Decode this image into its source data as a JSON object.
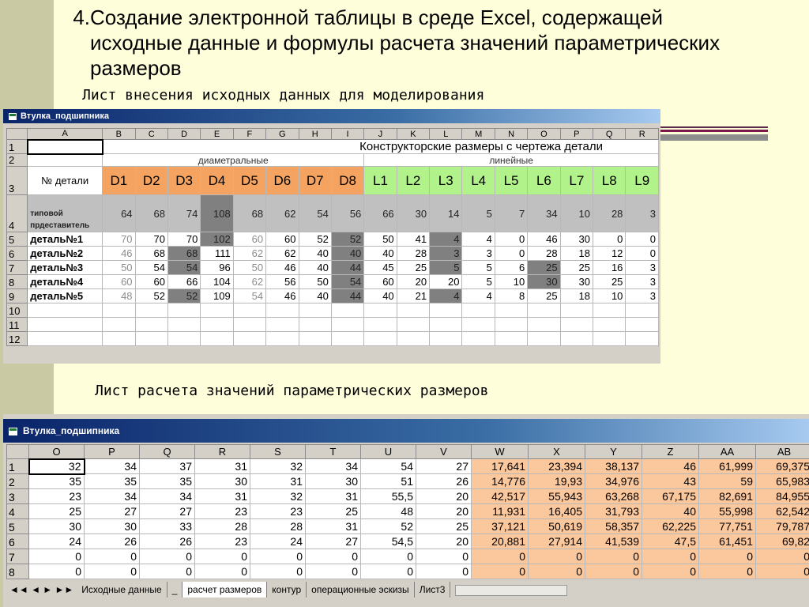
{
  "slide": {
    "number": "4.",
    "title_lines": [
      "Создание электронной таблицы в среде Excel, содержащей",
      "исходные данные и формулы расчета значений параметрических",
      "размеров"
    ],
    "caption_top": "Лист внесения исходных данных для моделирования",
    "caption_bottom": "Лист расчета значений параметрических размеров"
  },
  "sheet1": {
    "title": "Втулка_подшипника",
    "columns": [
      "A",
      "B",
      "C",
      "D",
      "E",
      "F",
      "G",
      "H",
      "I",
      "J",
      "K",
      "L",
      "M",
      "N",
      "O",
      "P",
      "Q",
      "R"
    ],
    "row_numbers": [
      "1",
      "2",
      "3",
      "4",
      "5",
      "6",
      "7",
      "8",
      "9",
      "10",
      "11",
      "12"
    ],
    "header_title": "Конструкторские размеры с чертежа детали",
    "group_diam": "диаметральные",
    "group_lin": "линейные",
    "part_label": "№ детали",
    "diam_labels": [
      "D1",
      "D2",
      "D3",
      "D4",
      "D5",
      "D6",
      "D7",
      "D8"
    ],
    "lin_labels": [
      "L1",
      "L2",
      "L3",
      "L4",
      "L5",
      "L6",
      "L7",
      "L8",
      "L9"
    ],
    "typical_label": "типовой прдеставитель",
    "typical_values": [
      "64",
      "68",
      "74",
      "108",
      "68",
      "62",
      "54",
      "56",
      "66",
      "30",
      "14",
      "5",
      "7",
      "34",
      "10",
      "28",
      "3"
    ],
    "parts": [
      {
        "name": "деталь№1",
        "values": [
          "70",
          "70",
          "70",
          "102",
          "60",
          "60",
          "52",
          "52",
          "50",
          "41",
          "4",
          "4",
          "0",
          "46",
          "30",
          "0",
          "0"
        ]
      },
      {
        "name": "деталь№2",
        "values": [
          "46",
          "68",
          "68",
          "111",
          "62",
          "62",
          "40",
          "40",
          "40",
          "28",
          "3",
          "3",
          "0",
          "28",
          "18",
          "12",
          "0"
        ]
      },
      {
        "name": "деталь№3",
        "values": [
          "50",
          "54",
          "54",
          "96",
          "50",
          "46",
          "40",
          "44",
          "45",
          "25",
          "5",
          "5",
          "6",
          "25",
          "25",
          "16",
          "3"
        ]
      },
      {
        "name": "деталь№4",
        "values": [
          "60",
          "60",
          "66",
          "104",
          "62",
          "56",
          "50",
          "54",
          "60",
          "20",
          "20",
          "5",
          "10",
          "30",
          "30",
          "25",
          "3"
        ]
      },
      {
        "name": "деталь№5",
        "values": [
          "48",
          "52",
          "52",
          "109",
          "54",
          "46",
          "40",
          "44",
          "40",
          "21",
          "4",
          "4",
          "8",
          "25",
          "18",
          "10",
          "3"
        ]
      }
    ],
    "tabs": [
      "Исходные данные",
      "_",
      "расчет размеров",
      "контур",
      "операционные эскизы",
      "Лист3"
    ]
  },
  "sheet2": {
    "title": "Втулка_подшипника",
    "columns": [
      "O",
      "P",
      "Q",
      "R",
      "S",
      "T",
      "U",
      "V",
      "W",
      "X",
      "Y",
      "Z",
      "AA",
      "AB"
    ],
    "rows": [
      {
        "n": "1",
        "v": [
          "32",
          "34",
          "37",
          "31",
          "32",
          "34",
          "54",
          "27",
          "17,641",
          "23,394",
          "38,137",
          "46",
          "61,999",
          "69,375"
        ]
      },
      {
        "n": "2",
        "v": [
          "35",
          "35",
          "35",
          "30",
          "31",
          "30",
          "51",
          "26",
          "14,776",
          "19,93",
          "34,976",
          "43",
          "59",
          "65,983"
        ]
      },
      {
        "n": "3",
        "v": [
          "23",
          "34",
          "34",
          "31",
          "32",
          "31",
          "55,5",
          "20",
          "42,517",
          "55,943",
          "63,268",
          "67,175",
          "82,691",
          "84,955"
        ]
      },
      {
        "n": "4",
        "v": [
          "25",
          "27",
          "27",
          "23",
          "23",
          "25",
          "48",
          "20",
          "11,931",
          "16,405",
          "31,793",
          "40",
          "55,998",
          "62,542"
        ]
      },
      {
        "n": "5",
        "v": [
          "30",
          "30",
          "33",
          "28",
          "28",
          "31",
          "52",
          "25",
          "37,121",
          "50,619",
          "58,357",
          "62,225",
          "77,751",
          "79,787"
        ]
      },
      {
        "n": "6",
        "v": [
          "24",
          "26",
          "26",
          "23",
          "24",
          "27",
          "54,5",
          "20",
          "20,881",
          "27,914",
          "41,539",
          "47,5",
          "61,451",
          "69,82"
        ]
      },
      {
        "n": "7",
        "v": [
          "0",
          "0",
          "0",
          "0",
          "0",
          "0",
          "0",
          "0",
          "0",
          "0",
          "0",
          "0",
          "0",
          "0"
        ]
      },
      {
        "n": "8",
        "v": [
          "0",
          "0",
          "0",
          "0",
          "0",
          "0",
          "0",
          "0",
          "0",
          "0",
          "0",
          "0",
          "0",
          "0"
        ]
      }
    ],
    "tabs": [
      "Исходные данные",
      "_",
      "расчет размеров",
      "контур",
      "операционные эскизы",
      "Лист3"
    ]
  },
  "colors": {
    "diametral": "#f4a460",
    "linear": "#b2f28a",
    "computed": "#fbc79c",
    "slide_background": "#fffeda",
    "slide_band": "#c9c9a3"
  }
}
